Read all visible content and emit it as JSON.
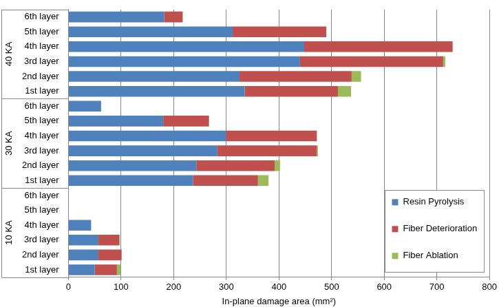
{
  "chart_data": {
    "type": "bar",
    "orientation": "horizontal",
    "stacked": true,
    "grid": true,
    "legend": "lower right",
    "xlabel": "In-plane damage area (mm²)",
    "groups": [
      "40 KA",
      "30 KA",
      "10 KA"
    ],
    "categories": [
      "6th layer",
      "5th layer",
      "4th layer",
      "3rd layer",
      "2nd layer",
      "1st layer",
      "6th layer",
      "5th layer",
      "4th layer",
      "3rd layer",
      "2nd layer",
      "1st layer",
      "6th layer",
      "5th layer",
      "4th layer",
      "3rd layer",
      "2nd layer",
      "1st layer"
    ],
    "series": [
      {
        "name": "Resin Pyrolysis",
        "color": "#4f81bd",
        "values": [
          182,
          312,
          448,
          440,
          325,
          335,
          62,
          180,
          300,
          283,
          243,
          237,
          0,
          0,
          43,
          57,
          57,
          50
        ]
      },
      {
        "name": "Fiber Deterioration",
        "color": "#c0504d",
        "values": [
          35,
          178,
          282,
          272,
          213,
          177,
          0,
          87,
          172,
          189,
          149,
          123,
          0,
          0,
          0,
          40,
          44,
          42
        ]
      },
      {
        "name": "Fiber Ablation",
        "color": "#9bbb59",
        "values": [
          0,
          0,
          0,
          4,
          18,
          25,
          0,
          0,
          0,
          2,
          10,
          20,
          0,
          0,
          0,
          0,
          0,
          7
        ]
      }
    ],
    "xlim": [
      0,
      800
    ],
    "xticks": [
      0,
      100,
      200,
      300,
      400,
      500,
      600,
      700,
      800
    ]
  }
}
